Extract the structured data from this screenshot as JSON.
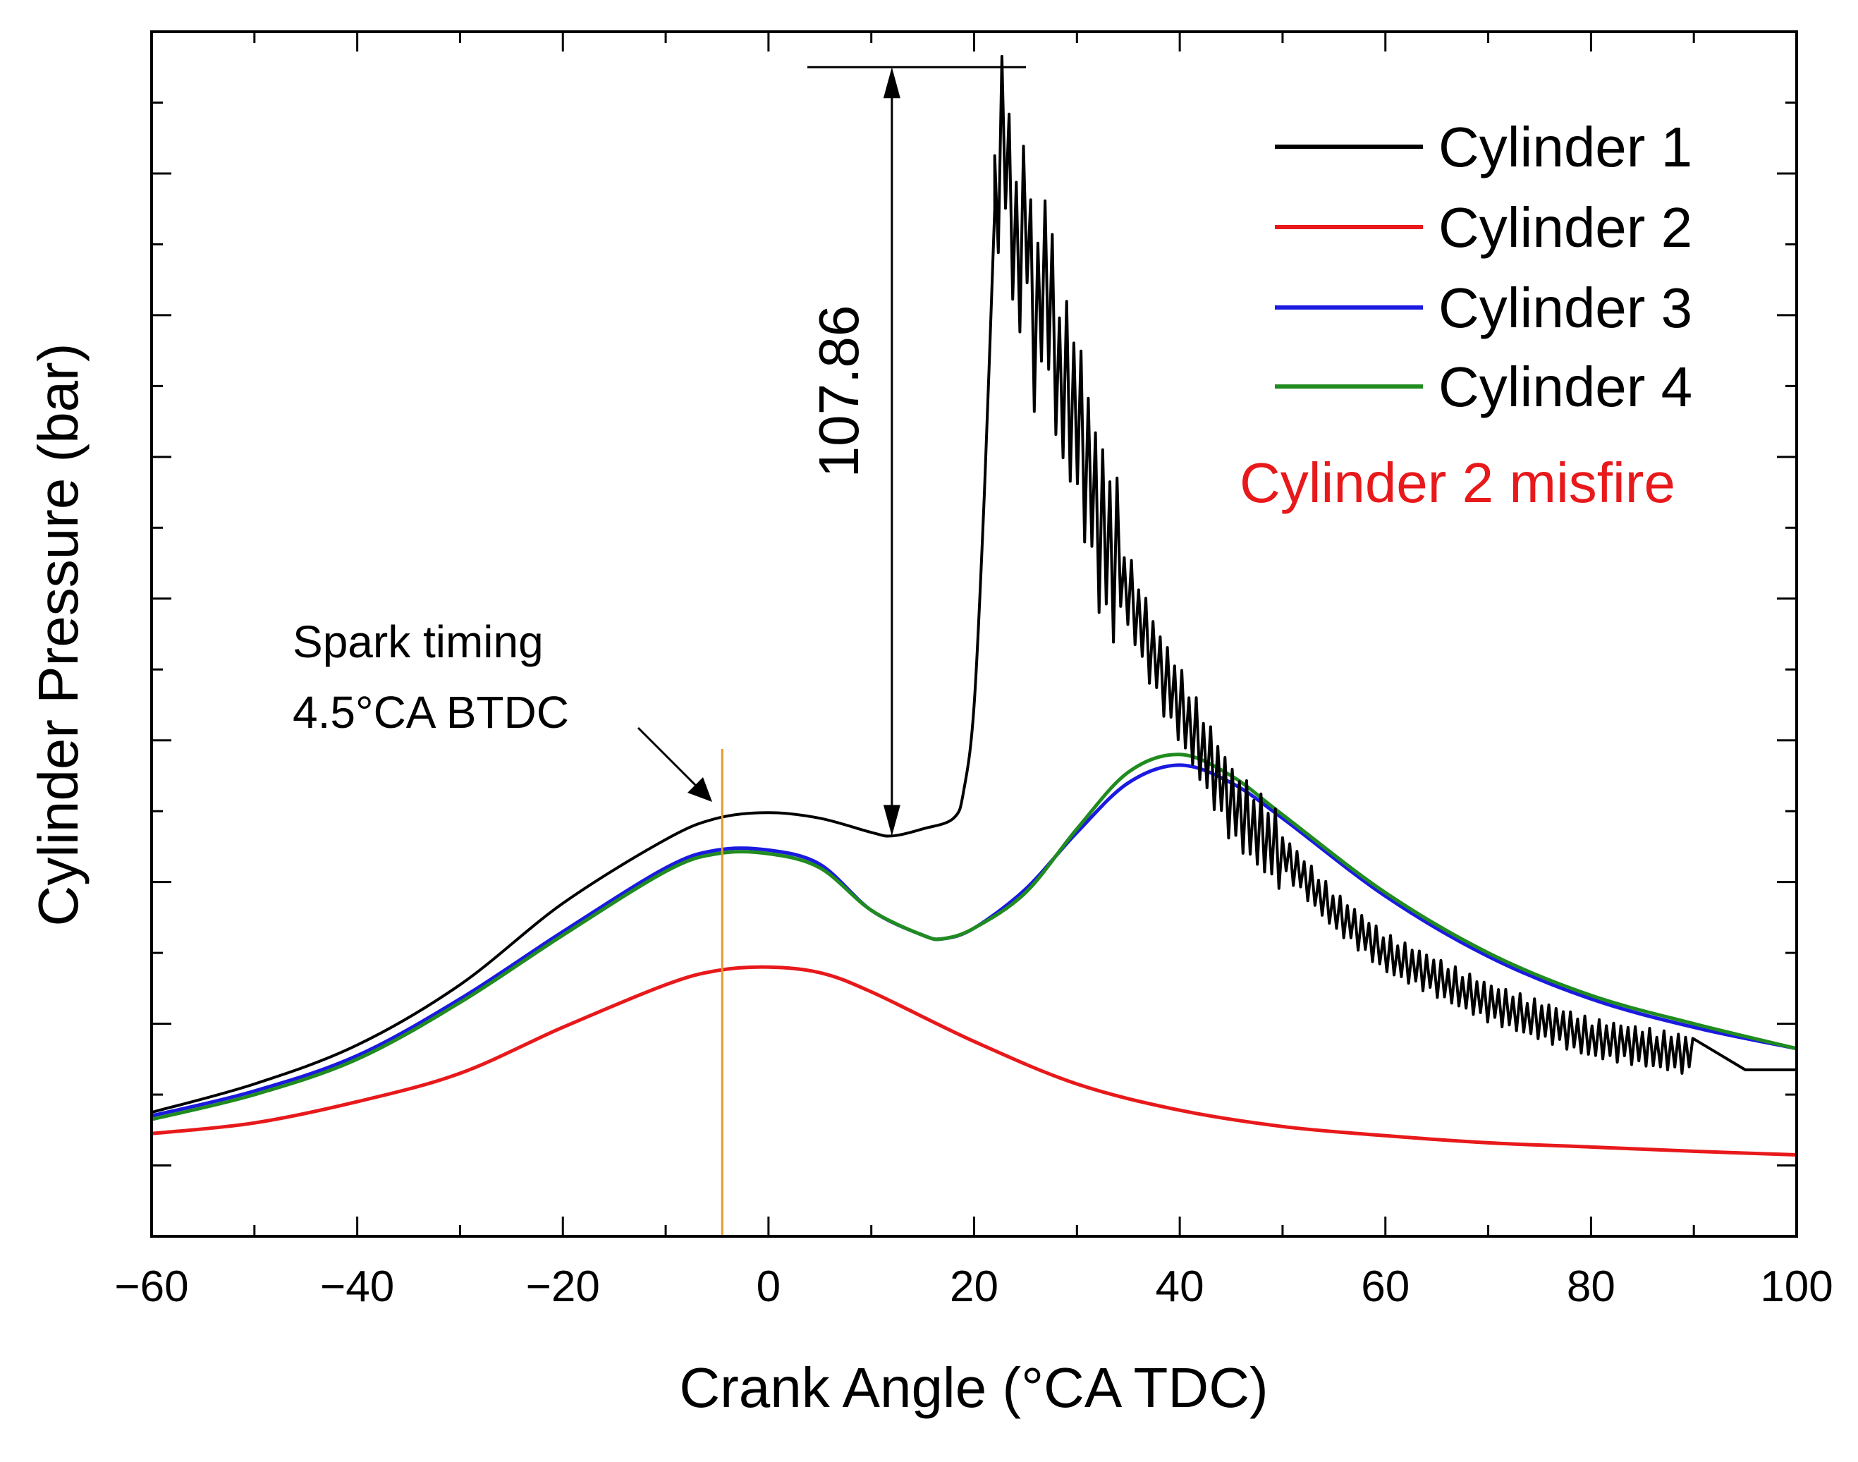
{
  "chart_data": {
    "type": "line",
    "title": "",
    "xlabel": "Crank Angle (°CA TDC)",
    "ylabel": "Cylinder Pressure (bar)",
    "xlim": [
      -60,
      100
    ],
    "ylim": [
      -1,
      16
    ],
    "y_tick_labels_shown": false,
    "x_ticks": [
      -60,
      -40,
      -20,
      0,
      20,
      40,
      60,
      80,
      100
    ],
    "x_tick_labels": [
      "−60",
      "−40",
      "−20",
      "0",
      "20",
      "40",
      "60",
      "80",
      "100"
    ],
    "y_ticks": [
      0,
      2,
      4,
      6,
      8,
      10,
      12,
      14,
      16
    ],
    "series": [
      {
        "name": "Cylinder 1",
        "color": "#000000",
        "x": [
          -60,
          -50,
          -40,
          -30,
          -20,
          -10,
          -5,
          0,
          5,
          10,
          12,
          15,
          18,
          19,
          20,
          21,
          22,
          23,
          24,
          25,
          26,
          27,
          28,
          30,
          32,
          35,
          38,
          40,
          45,
          50,
          55,
          60,
          70,
          80,
          90,
          95,
          100
        ],
        "y": [
          0.75,
          1.15,
          1.7,
          2.55,
          3.7,
          4.6,
          4.9,
          4.98,
          4.9,
          4.7,
          4.65,
          4.75,
          4.9,
          5.3,
          6.5,
          9.5,
          13.5,
          14.8,
          12.6,
          13.5,
          11.6,
          12.8,
          11.3,
          10.6,
          9.1,
          8.1,
          7.0,
          6.5,
          5.1,
          4.4,
          3.6,
          3.0,
          2.3,
          1.8,
          1.55,
          1.35,
          1.35
        ],
        "oscillating_from_x": 22
      },
      {
        "name": "Cylinder 2",
        "color": "#e8191b",
        "x": [
          -60,
          -50,
          -40,
          -30,
          -20,
          -10,
          -5,
          0,
          5,
          10,
          20,
          30,
          40,
          50,
          60,
          70,
          80,
          90,
          100
        ],
        "y": [
          0.45,
          0.6,
          0.9,
          1.3,
          1.95,
          2.55,
          2.75,
          2.8,
          2.72,
          2.45,
          1.75,
          1.15,
          0.78,
          0.55,
          0.42,
          0.32,
          0.26,
          0.2,
          0.15
        ]
      },
      {
        "name": "Cylinder 3",
        "color": "#1a1ae0",
        "x": [
          -60,
          -50,
          -40,
          -30,
          -20,
          -10,
          -5,
          0,
          5,
          10,
          15,
          17,
          20,
          25,
          30,
          35,
          40,
          45,
          50,
          60,
          70,
          80,
          90,
          100
        ],
        "y": [
          0.7,
          1.05,
          1.55,
          2.35,
          3.3,
          4.2,
          4.45,
          4.45,
          4.25,
          3.6,
          3.25,
          3.2,
          3.35,
          3.9,
          4.7,
          5.4,
          5.65,
          5.4,
          4.9,
          3.8,
          2.95,
          2.35,
          1.95,
          1.65
        ]
      },
      {
        "name": "Cylinder 4",
        "color": "#208c20",
        "x": [
          -60,
          -50,
          -40,
          -30,
          -20,
          -10,
          -5,
          0,
          5,
          10,
          15,
          17,
          20,
          25,
          30,
          35,
          40,
          45,
          50,
          60,
          70,
          80,
          90,
          100
        ],
        "y": [
          0.65,
          1.0,
          1.5,
          2.3,
          3.25,
          4.15,
          4.4,
          4.4,
          4.2,
          3.6,
          3.25,
          3.2,
          3.35,
          3.85,
          4.75,
          5.55,
          5.8,
          5.5,
          4.95,
          3.85,
          3.0,
          2.4,
          2.0,
          1.65
        ]
      }
    ],
    "legend": {
      "position": "top-right",
      "entries": [
        "Cylinder 1",
        "Cylinder 2",
        "Cylinder 3",
        "Cylinder 4"
      ]
    },
    "annotations": {
      "misfire": {
        "text": "Cylinder 2 misfire",
        "color": "#e8191b"
      },
      "spark": {
        "line1": "Spark timing",
        "line2": "4.5°CA BTDC",
        "x": -4.5,
        "line_color": "#e39a2b"
      },
      "peak": {
        "text": "107.86",
        "x": 12,
        "y_low": 4.65,
        "y_high": 15.5
      }
    }
  }
}
